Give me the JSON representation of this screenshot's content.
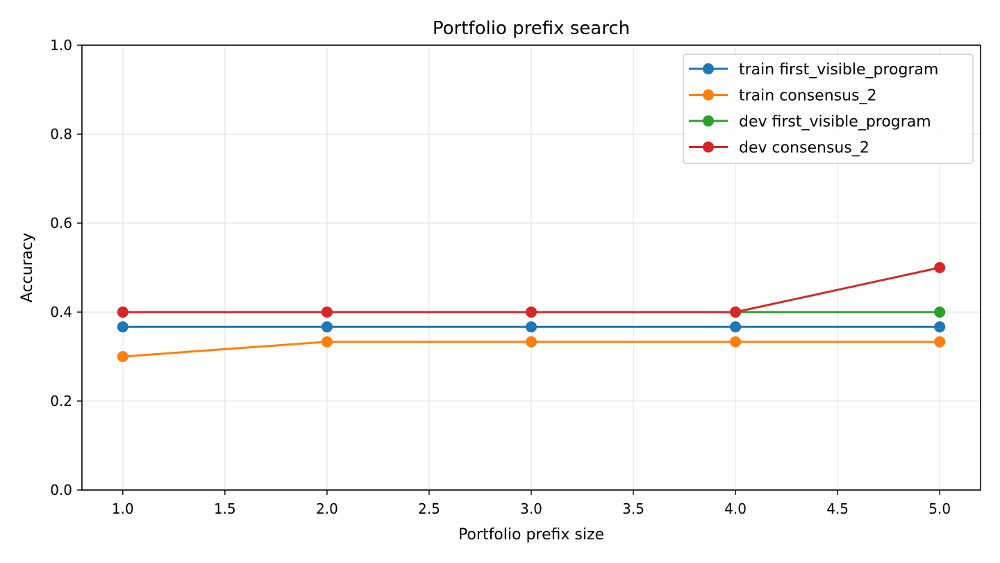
{
  "chart_data": {
    "type": "line",
    "title": "Portfolio prefix search",
    "xlabel": "Portfolio prefix size",
    "ylabel": "Accuracy",
    "xlim": [
      0.8,
      5.2
    ],
    "ylim": [
      0.0,
      1.0
    ],
    "xticks": [
      "1.0",
      "1.5",
      "2.0",
      "2.5",
      "3.0",
      "3.5",
      "4.0",
      "4.5",
      "5.0"
    ],
    "yticks": [
      "0.0",
      "0.2",
      "0.4",
      "0.6",
      "0.8",
      "1.0"
    ],
    "grid": true,
    "legend_position": "top-right",
    "x": [
      1,
      2,
      3,
      4,
      5
    ],
    "series": [
      {
        "name": "train first_visible_program",
        "color": "#1f77b4",
        "values": [
          0.3667,
          0.3667,
          0.3667,
          0.3667,
          0.3667
        ]
      },
      {
        "name": "train consensus_2",
        "color": "#ff7f0e",
        "values": [
          0.3,
          0.3333,
          0.3333,
          0.3333,
          0.3333
        ]
      },
      {
        "name": "dev first_visible_program",
        "color": "#2ca02c",
        "values": [
          0.4,
          0.4,
          0.4,
          0.4,
          0.4
        ]
      },
      {
        "name": "dev consensus_2",
        "color": "#d62728",
        "values": [
          0.4,
          0.4,
          0.4,
          0.4,
          0.5
        ]
      }
    ]
  }
}
